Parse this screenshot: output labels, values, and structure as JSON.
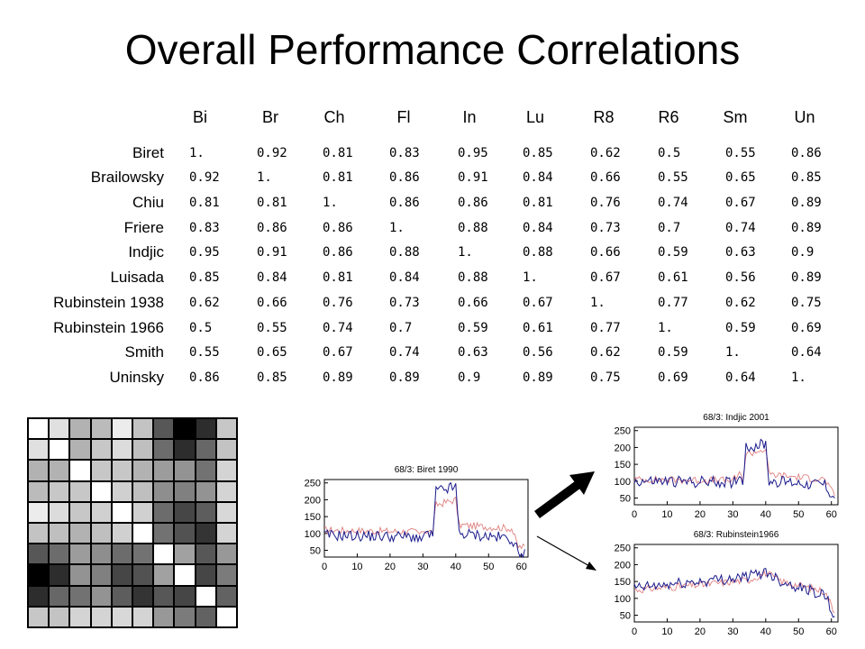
{
  "title": "Overall Performance Correlations",
  "column_headers": [
    "Bi",
    "Br",
    "Ch",
    "Fl",
    "In",
    "Lu",
    "R8",
    "R6",
    "Sm",
    "Un"
  ],
  "row_labels": [
    "Biret",
    "Brailowsky",
    "Chiu",
    "Friere",
    "Indjic",
    "Luisada",
    "Rubinstein 1938",
    "Rubinstein 1966",
    "Smith",
    "Uninsky"
  ],
  "matrix_values": [
    [
      1,
      0.92,
      0.81,
      0.83,
      0.95,
      0.85,
      0.62,
      0.5,
      0.55,
      0.86
    ],
    [
      0.92,
      1,
      0.81,
      0.86,
      0.91,
      0.84,
      0.66,
      0.55,
      0.65,
      0.85
    ],
    [
      0.81,
      0.81,
      1,
      0.86,
      0.86,
      0.81,
      0.76,
      0.74,
      0.67,
      0.89
    ],
    [
      0.83,
      0.86,
      0.86,
      1,
      0.88,
      0.84,
      0.73,
      0.7,
      0.74,
      0.89
    ],
    [
      0.95,
      0.91,
      0.86,
      0.88,
      1,
      0.88,
      0.66,
      0.59,
      0.63,
      0.9
    ],
    [
      0.85,
      0.84,
      0.81,
      0.84,
      0.88,
      1,
      0.67,
      0.61,
      0.56,
      0.89
    ],
    [
      0.62,
      0.66,
      0.76,
      0.73,
      0.66,
      0.67,
      1,
      0.77,
      0.62,
      0.75
    ],
    [
      0.5,
      0.55,
      0.74,
      0.7,
      0.59,
      0.61,
      0.77,
      1,
      0.59,
      0.69
    ],
    [
      0.55,
      0.65,
      0.67,
      0.74,
      0.63,
      0.56,
      0.62,
      0.59,
      1,
      0.64
    ],
    [
      0.86,
      0.85,
      0.89,
      0.89,
      0.9,
      0.89,
      0.75,
      0.69,
      0.64,
      1
    ]
  ],
  "matrix_display": [
    [
      "1.",
      "0.92",
      "0.81",
      "0.83",
      "0.95",
      "0.85",
      "0.62",
      "0.5",
      "0.55",
      "0.86"
    ],
    [
      "0.92",
      "1.",
      "0.81",
      "0.86",
      "0.91",
      "0.84",
      "0.66",
      "0.55",
      "0.65",
      "0.85"
    ],
    [
      "0.81",
      "0.81",
      "1.",
      "0.86",
      "0.86",
      "0.81",
      "0.76",
      "0.74",
      "0.67",
      "0.89"
    ],
    [
      "0.83",
      "0.86",
      "0.86",
      "1.",
      "0.88",
      "0.84",
      "0.73",
      "0.7",
      "0.74",
      "0.89"
    ],
    [
      "0.95",
      "0.91",
      "0.86",
      "0.88",
      "1.",
      "0.88",
      "0.66",
      "0.59",
      "0.63",
      "0.9"
    ],
    [
      "0.85",
      "0.84",
      "0.81",
      "0.84",
      "0.88",
      "1.",
      "0.67",
      "0.61",
      "0.56",
      "0.89"
    ],
    [
      "0.62",
      "0.66",
      "0.76",
      "0.73",
      "0.66",
      "0.67",
      "1.",
      "0.77",
      "0.62",
      "0.75"
    ],
    [
      "0.5",
      "0.55",
      "0.74",
      "0.7",
      "0.59",
      "0.61",
      "0.77",
      "1.",
      "0.59",
      "0.69"
    ],
    [
      "0.55",
      "0.65",
      "0.67",
      "0.74",
      "0.63",
      "0.56",
      "0.62",
      "0.59",
      "1.",
      "0.64"
    ],
    [
      "0.86",
      "0.85",
      "0.89",
      "0.89",
      "0.9",
      "0.89",
      "0.75",
      "0.69",
      "0.64",
      "1."
    ]
  ],
  "plots": [
    {
      "title": "68/3: Biret 1990",
      "yticks": [
        "250",
        "200",
        "150",
        "100",
        "50"
      ],
      "xticks": [
        "0",
        "10",
        "20",
        "30",
        "40",
        "50",
        "60"
      ],
      "ylim": [
        30,
        260
      ],
      "xlim": [
        0,
        62
      ],
      "blue_color": "#1a1a8c",
      "red_color": "#e08080",
      "blue_segments": [
        [
          0,
          95
        ],
        [
          28,
          90
        ],
        [
          29.5,
          68
        ],
        [
          30,
          100
        ],
        [
          33,
          92
        ],
        [
          34,
          225
        ],
        [
          40,
          238
        ],
        [
          41,
          100
        ],
        [
          57,
          85
        ],
        [
          59,
          45
        ]
      ],
      "red_segments": [
        [
          0,
          110
        ],
        [
          28,
          105
        ],
        [
          29.5,
          95
        ],
        [
          30,
          110
        ],
        [
          33,
          104
        ],
        [
          34,
          185
        ],
        [
          40,
          200
        ],
        [
          41,
          125
        ],
        [
          57,
          115
        ],
        [
          59,
          60
        ]
      ]
    },
    {
      "title": "68/3: Indjic 2001",
      "yticks": [
        "250",
        "200",
        "150",
        "100",
        "50"
      ],
      "xticks": [
        "0",
        "10",
        "20",
        "30",
        "40",
        "50",
        "60"
      ],
      "ylim": [
        30,
        260
      ],
      "xlim": [
        0,
        62
      ],
      "blue_color": "#1a1a8c",
      "red_color": "#e08080",
      "blue_segments": [
        [
          0,
          100
        ],
        [
          30,
          97
        ],
        [
          32,
          115
        ],
        [
          33,
          100
        ],
        [
          34,
          200
        ],
        [
          40,
          210
        ],
        [
          41,
          100
        ],
        [
          58,
          90
        ],
        [
          61,
          45
        ]
      ],
      "red_segments": [
        [
          0,
          105
        ],
        [
          30,
          102
        ],
        [
          32,
          120
        ],
        [
          33,
          105
        ],
        [
          34,
          180
        ],
        [
          40,
          195
        ],
        [
          41,
          120
        ],
        [
          58,
          105
        ],
        [
          61,
          55
        ]
      ]
    },
    {
      "title": "68/3: Rubinstein1966",
      "yticks": [
        "250",
        "200",
        "150",
        "100",
        "50"
      ],
      "xticks": [
        "0",
        "10",
        "20",
        "30",
        "40",
        "50",
        "60"
      ],
      "ylim": [
        30,
        260
      ],
      "xlim": [
        0,
        62
      ],
      "blue_color": "#1a1a8c",
      "red_color": "#e08080",
      "blue_segments": [
        [
          0,
          130
        ],
        [
          20,
          150
        ],
        [
          35,
          165
        ],
        [
          40,
          180
        ],
        [
          45,
          150
        ],
        [
          58,
          110
        ],
        [
          61,
          45
        ]
      ],
      "red_segments": [
        [
          0,
          125
        ],
        [
          20,
          140
        ],
        [
          35,
          155
        ],
        [
          40,
          175
        ],
        [
          45,
          150
        ],
        [
          58,
          120
        ],
        [
          61,
          60
        ]
      ]
    }
  ]
}
